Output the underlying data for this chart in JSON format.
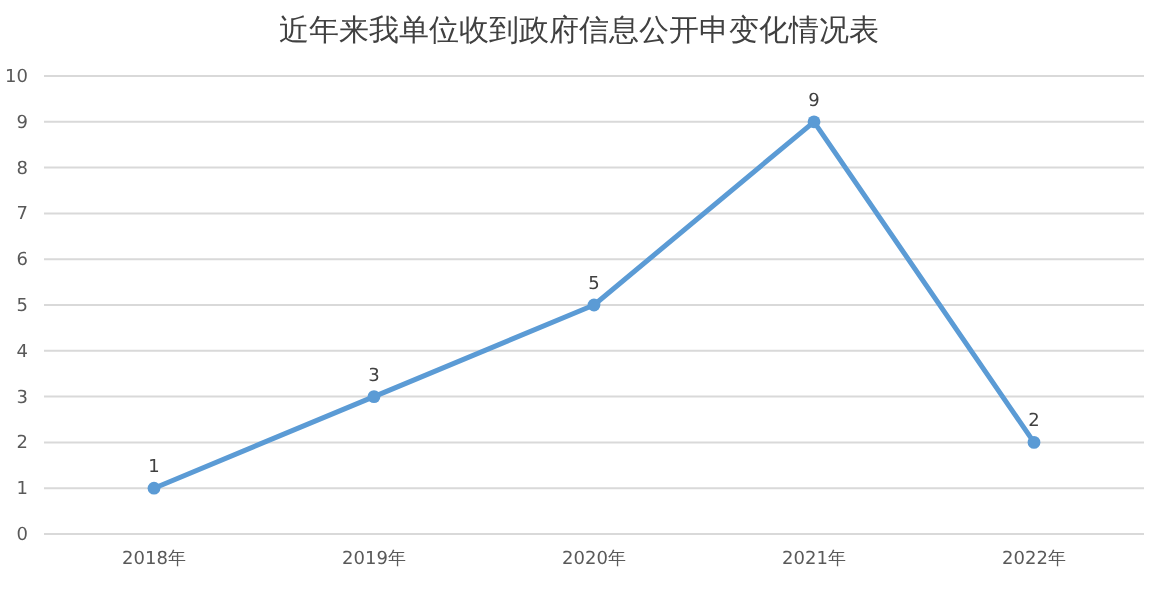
{
  "chart_data": {
    "type": "line",
    "title": "近年来我单位收到政府信息公开申变化情况表",
    "categories": [
      "2018年",
      "2019年",
      "2020年",
      "2021年",
      "2022年"
    ],
    "series": [
      {
        "color": "#5b9bd5",
        "values": [
          1,
          3,
          5,
          9,
          2
        ]
      }
    ],
    "ylim": [
      0,
      10
    ],
    "yticks": [
      0,
      1,
      2,
      3,
      4,
      5,
      6,
      7,
      8,
      9,
      10
    ],
    "grid": "y",
    "marker": "circle",
    "line_style": "solid",
    "data_labels": true
  }
}
